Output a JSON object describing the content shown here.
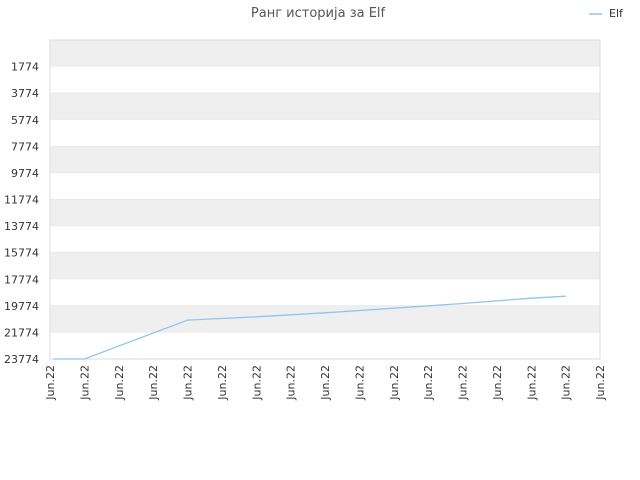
{
  "chart_data": {
    "type": "line",
    "title": "Ранг историја за Elf",
    "legend": {
      "position": "top-right"
    },
    "grid": true,
    "band_colors": [
      "#efefef",
      "#ffffff"
    ],
    "ylim_top": 23774,
    "ylim_bottom": -226,
    "y_reversed": true,
    "y_ticks": [
      1774,
      3774,
      5774,
      7774,
      9774,
      11774,
      13774,
      15774,
      17774,
      19774,
      21774,
      23774
    ],
    "x_ticks": [
      "Jun.22",
      "Jun.22",
      "Jun.22",
      "Jun.22",
      "Jun.22",
      "Jun.22",
      "Jun.22",
      "Jun.22",
      "Jun.22",
      "Jun.22",
      "Jun.22",
      "Jun.22",
      "Jun.22",
      "Jun.22",
      "Jun.22",
      "Jun.22",
      "Jun.22"
    ],
    "series": [
      {
        "name": "Elf",
        "color": "#90c5ee",
        "points": [
          {
            "x": 0.1,
            "y": 23774
          },
          {
            "x": 1.0,
            "y": 23774
          },
          {
            "x": 4.0,
            "y": 20850
          },
          {
            "x": 6.0,
            "y": 20600
          },
          {
            "x": 8.0,
            "y": 20300
          },
          {
            "x": 10.0,
            "y": 19950
          },
          {
            "x": 12.0,
            "y": 19600
          },
          {
            "x": 14.0,
            "y": 19200
          },
          {
            "x": 15.0,
            "y": 19050
          }
        ]
      }
    ]
  }
}
